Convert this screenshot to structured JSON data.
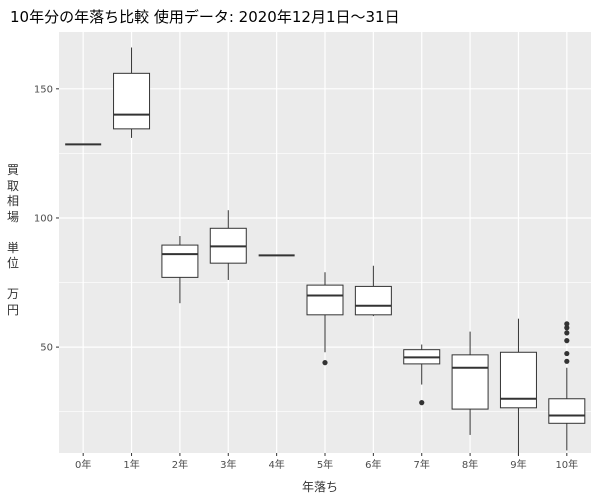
{
  "chart_data": {
    "type": "boxplot",
    "title": "10年分の年落ち比較 使用データ: 2020年12月1日～31日",
    "xlabel": "年落ち",
    "ylabel_chars": [
      "買",
      "取",
      "相",
      "場",
      "",
      "単",
      "位",
      "",
      "万",
      "円"
    ],
    "categories": [
      "0年",
      "1年",
      "2年",
      "3年",
      "4年",
      "5年",
      "6年",
      "7年",
      "8年",
      "9年",
      "10年"
    ],
    "yticks": [
      50,
      100,
      150
    ],
    "ylim": [
      9,
      172
    ],
    "grid": true,
    "background": "#ebebeb",
    "grid_color": "#ffffff",
    "box_fill": "#ffffff",
    "line_color": "#333333",
    "boxes": [
      {
        "min": 128.5,
        "q1": 128.5,
        "median": 128.5,
        "q3": 128.5,
        "max": 128.5,
        "outliers": []
      },
      {
        "min": 131,
        "q1": 134.5,
        "median": 140,
        "q3": 156,
        "max": 166,
        "outliers": []
      },
      {
        "min": 67,
        "q1": 77,
        "median": 86,
        "q3": 89.5,
        "max": 93,
        "outliers": []
      },
      {
        "min": 76,
        "q1": 82.5,
        "median": 89,
        "q3": 96,
        "max": 103,
        "outliers": []
      },
      {
        "min": 85.5,
        "q1": 85.5,
        "median": 85.5,
        "q3": 85.5,
        "max": 85.5,
        "outliers": []
      },
      {
        "min": 48,
        "q1": 62.5,
        "median": 70,
        "q3": 74,
        "max": 79,
        "outliers": [
          44
        ]
      },
      {
        "min": 62,
        "q1": 62.5,
        "median": 66,
        "q3": 73.5,
        "max": 81.5,
        "outliers": []
      },
      {
        "min": 35.5,
        "q1": 43.5,
        "median": 46,
        "q3": 49,
        "max": 51,
        "outliers": [
          28.5
        ]
      },
      {
        "min": 16,
        "q1": 26,
        "median": 42,
        "q3": 47,
        "max": 56,
        "outliers": []
      },
      {
        "min": 8,
        "q1": 26.5,
        "median": 30,
        "q3": 48,
        "max": 61,
        "outliers": []
      },
      {
        "min": 10,
        "q1": 20.5,
        "median": 23.5,
        "q3": 30,
        "max": 42,
        "outliers": [
          44.5,
          47.5,
          52.5,
          55.5,
          57.5,
          59
        ]
      }
    ]
  }
}
